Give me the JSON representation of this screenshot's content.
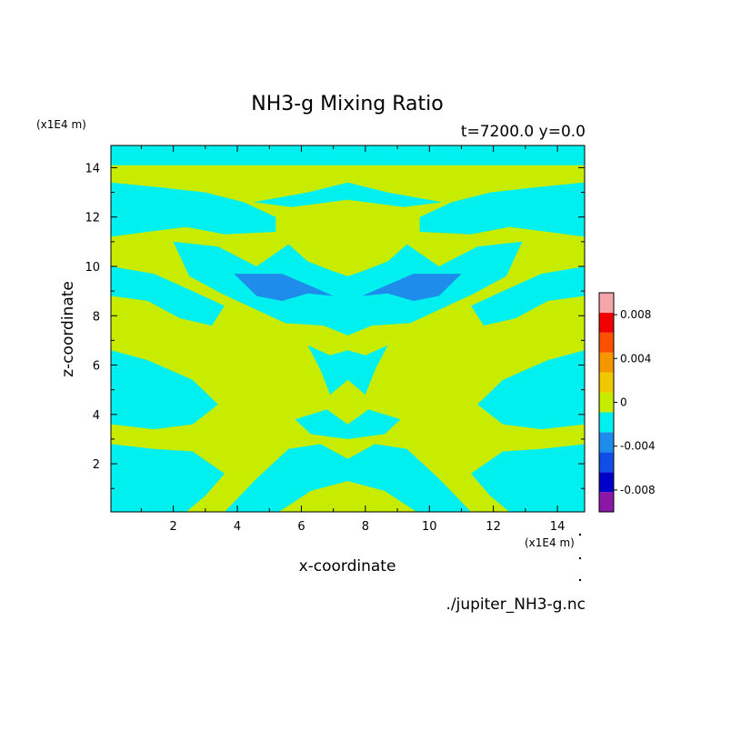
{
  "chart_data": {
    "type": "heatmap",
    "title": "NH3-g Mixing Ratio",
    "subtitle": "t=7200.0 y=0.0",
    "xlabel": "x-coordinate",
    "ylabel": "z-coordinate",
    "x_unit": "(x1E4 m)",
    "y_unit": "(x1E4 m)",
    "xlim": [
      0.05,
      14.85
    ],
    "ylim": [
      0.05,
      14.9
    ],
    "xticks": [
      2,
      4,
      6,
      8,
      10,
      12,
      14
    ],
    "yticks": [
      2,
      4,
      6,
      8,
      10,
      12,
      14
    ],
    "grid": false,
    "source_file": "./jupiter_NH3-g.nc",
    "background_level_color": "#c8ec00",
    "colorbar": {
      "levels": [
        -0.01,
        -0.008,
        -0.006,
        -0.004,
        -0.002,
        0,
        0.002,
        0.004,
        0.006,
        0.008,
        0.01
      ],
      "colors": [
        "#8a17a8",
        "#0000c8",
        "#0f4fe6",
        "#1e8ceb",
        "#00f0f0",
        "#c8ec00",
        "#f0c800",
        "#f59600",
        "#fa5000",
        "#f00000",
        "#f5a6aa"
      ],
      "tick_labels": [
        "0.008",
        "0.004",
        "0",
        "-0.004",
        "-0.008"
      ],
      "tick_values": [
        0.008,
        0.004,
        0,
        -0.004,
        -0.008
      ]
    },
    "regions": [
      {
        "level": "-0.002..0",
        "color": "#00f0f0",
        "polygon": [
          [
            0.05,
            14.9
          ],
          [
            14.85,
            14.9
          ],
          [
            14.85,
            14.1
          ],
          [
            0.05,
            14.1
          ]
        ]
      },
      {
        "level": "-0.002..0",
        "color": "#00f0f0",
        "polygon": [
          [
            0.05,
            13.4
          ],
          [
            1.6,
            13.2
          ],
          [
            3.0,
            13.0
          ],
          [
            4.2,
            12.6
          ],
          [
            5.2,
            12.0
          ],
          [
            5.2,
            11.4
          ],
          [
            3.6,
            11.3
          ],
          [
            2.4,
            11.6
          ],
          [
            1.2,
            11.4
          ],
          [
            0.05,
            11.2
          ]
        ]
      },
      {
        "level": "-0.002..0",
        "color": "#00f0f0",
        "polygon": [
          [
            14.85,
            13.4
          ],
          [
            13.3,
            13.2
          ],
          [
            11.9,
            13.0
          ],
          [
            10.7,
            12.6
          ],
          [
            9.7,
            12.0
          ],
          [
            9.7,
            11.4
          ],
          [
            11.3,
            11.3
          ],
          [
            12.5,
            11.6
          ],
          [
            13.7,
            11.4
          ],
          [
            14.85,
            11.2
          ]
        ]
      },
      {
        "level": "-0.002..0",
        "color": "#00f0f0",
        "polygon": [
          [
            4.5,
            12.6
          ],
          [
            6.2,
            13.0
          ],
          [
            7.45,
            13.4
          ],
          [
            8.7,
            13.0
          ],
          [
            10.4,
            12.6
          ],
          [
            9.2,
            12.4
          ],
          [
            7.45,
            12.7
          ],
          [
            5.7,
            12.4
          ]
        ]
      },
      {
        "level": "-0.002..0",
        "color": "#00f0f0",
        "polygon": [
          [
            2.0,
            11.0
          ],
          [
            3.4,
            10.8
          ],
          [
            4.6,
            10.0
          ],
          [
            5.6,
            10.9
          ],
          [
            6.2,
            10.2
          ],
          [
            7.0,
            9.8
          ],
          [
            7.45,
            9.6
          ],
          [
            7.9,
            9.8
          ],
          [
            8.7,
            10.2
          ],
          [
            9.3,
            10.9
          ],
          [
            10.3,
            10.0
          ],
          [
            11.5,
            10.8
          ],
          [
            12.9,
            11.0
          ],
          [
            12.4,
            9.6
          ],
          [
            11.4,
            8.9
          ],
          [
            10.4,
            8.3
          ],
          [
            9.4,
            7.7
          ],
          [
            8.2,
            7.6
          ],
          [
            7.45,
            7.2
          ],
          [
            6.7,
            7.6
          ],
          [
            5.5,
            7.7
          ],
          [
            4.5,
            8.3
          ],
          [
            3.5,
            8.9
          ],
          [
            2.5,
            9.6
          ]
        ]
      },
      {
        "level": "-0.002..0",
        "color": "#00f0f0",
        "polygon": [
          [
            0.05,
            10.0
          ],
          [
            1.4,
            9.7
          ],
          [
            2.6,
            9.0
          ],
          [
            3.6,
            8.4
          ],
          [
            3.2,
            7.6
          ],
          [
            2.2,
            7.9
          ],
          [
            1.2,
            8.6
          ],
          [
            0.05,
            8.8
          ]
        ]
      },
      {
        "level": "-0.002..0",
        "color": "#00f0f0",
        "polygon": [
          [
            14.85,
            10.0
          ],
          [
            13.5,
            9.7
          ],
          [
            12.3,
            9.0
          ],
          [
            11.3,
            8.4
          ],
          [
            11.7,
            7.6
          ],
          [
            12.7,
            7.9
          ],
          [
            13.7,
            8.6
          ],
          [
            14.85,
            8.8
          ]
        ]
      },
      {
        "level": "-0.002..0",
        "color": "#00f0f0",
        "polygon": [
          [
            0.05,
            6.6
          ],
          [
            1.2,
            6.2
          ],
          [
            2.6,
            5.4
          ],
          [
            3.4,
            4.4
          ],
          [
            2.6,
            3.6
          ],
          [
            1.4,
            3.4
          ],
          [
            0.05,
            3.6
          ]
        ]
      },
      {
        "level": "-0.002..0",
        "color": "#00f0f0",
        "polygon": [
          [
            14.85,
            6.6
          ],
          [
            13.7,
            6.2
          ],
          [
            12.3,
            5.4
          ],
          [
            11.5,
            4.4
          ],
          [
            12.3,
            3.6
          ],
          [
            13.5,
            3.4
          ],
          [
            14.85,
            3.6
          ]
        ]
      },
      {
        "level": "-0.002..0",
        "color": "#00f0f0",
        "polygon": [
          [
            0.05,
            2.8
          ],
          [
            1.4,
            2.6
          ],
          [
            2.6,
            2.5
          ],
          [
            3.6,
            1.6
          ],
          [
            3.0,
            0.7
          ],
          [
            2.4,
            0.05
          ],
          [
            0.05,
            0.05
          ]
        ]
      },
      {
        "level": "-0.002..0",
        "color": "#00f0f0",
        "polygon": [
          [
            14.85,
            2.8
          ],
          [
            13.5,
            2.6
          ],
          [
            12.3,
            2.5
          ],
          [
            11.3,
            1.6
          ],
          [
            11.9,
            0.7
          ],
          [
            12.5,
            0.05
          ],
          [
            14.85,
            0.05
          ]
        ]
      },
      {
        "level": "-0.002..0",
        "color": "#00f0f0",
        "polygon": [
          [
            3.6,
            0.05
          ],
          [
            4.6,
            1.4
          ],
          [
            5.6,
            2.6
          ],
          [
            6.6,
            2.8
          ],
          [
            7.45,
            2.2
          ],
          [
            8.3,
            2.8
          ],
          [
            9.3,
            2.6
          ],
          [
            10.3,
            1.4
          ],
          [
            11.3,
            0.05
          ],
          [
            9.6,
            0.05
          ],
          [
            8.6,
            0.9
          ],
          [
            7.45,
            1.3
          ],
          [
            6.3,
            0.9
          ],
          [
            5.3,
            0.05
          ]
        ]
      },
      {
        "level": "-0.002..0",
        "color": "#00f0f0",
        "polygon": [
          [
            5.8,
            3.8
          ],
          [
            6.8,
            4.2
          ],
          [
            7.45,
            3.6
          ],
          [
            8.1,
            4.2
          ],
          [
            9.1,
            3.8
          ],
          [
            8.6,
            3.2
          ],
          [
            7.45,
            3.0
          ],
          [
            6.3,
            3.2
          ]
        ]
      },
      {
        "level": "-0.002..0",
        "color": "#00f0f0",
        "polygon": [
          [
            6.2,
            6.8
          ],
          [
            6.6,
            5.8
          ],
          [
            6.9,
            4.8
          ],
          [
            7.45,
            5.4
          ],
          [
            8.0,
            4.8
          ],
          [
            8.3,
            5.8
          ],
          [
            8.7,
            6.8
          ],
          [
            8.0,
            6.4
          ],
          [
            7.45,
            6.6
          ],
          [
            6.9,
            6.4
          ]
        ]
      },
      {
        "level": "-0.004..-0.002",
        "color": "#1e8ceb",
        "polygon": [
          [
            3.9,
            9.7
          ],
          [
            5.4,
            9.7
          ],
          [
            6.3,
            9.2
          ],
          [
            7.0,
            8.8
          ],
          [
            6.2,
            8.9
          ],
          [
            5.4,
            8.6
          ],
          [
            4.6,
            8.8
          ]
        ]
      },
      {
        "level": "-0.004..-0.002",
        "color": "#1e8ceb",
        "polygon": [
          [
            11.0,
            9.7
          ],
          [
            9.5,
            9.7
          ],
          [
            8.6,
            9.2
          ],
          [
            7.9,
            8.8
          ],
          [
            8.7,
            8.9
          ],
          [
            9.5,
            8.6
          ],
          [
            10.3,
            8.8
          ]
        ]
      }
    ]
  }
}
